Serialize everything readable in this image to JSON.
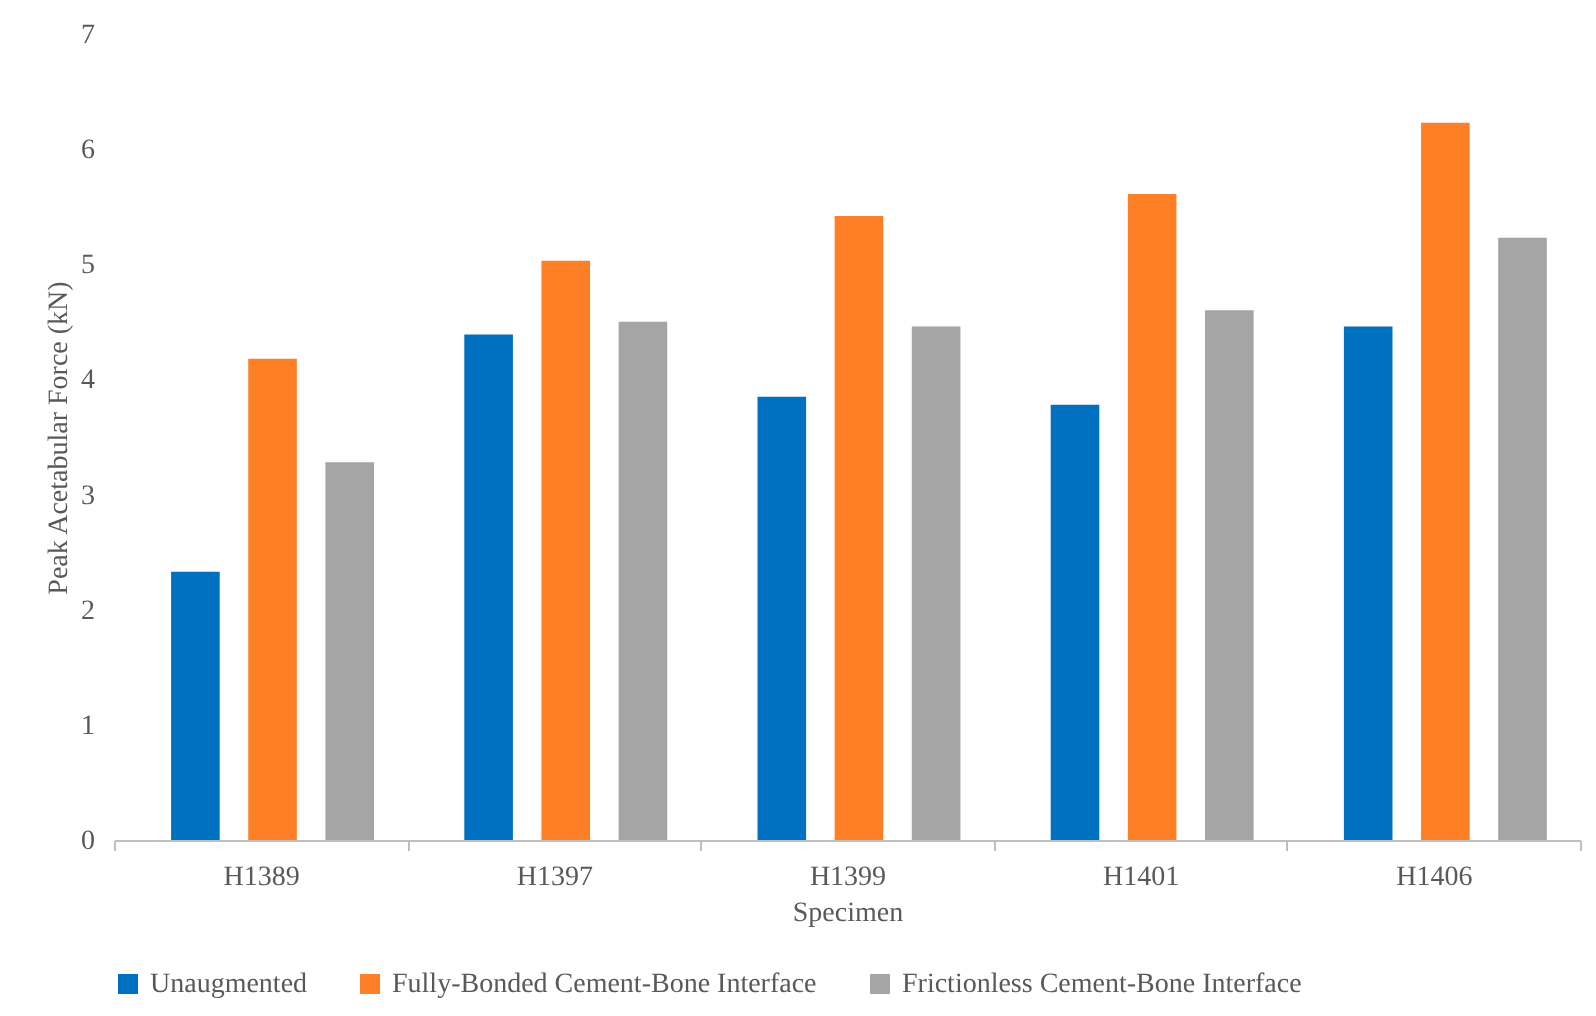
{
  "chart_data": {
    "type": "bar",
    "xlabel": "Specimen",
    "ylabel": "Peak Acetabular Force (kN)",
    "categories": [
      "H1389",
      "H1397",
      "H1399",
      "H1401",
      "H1406"
    ],
    "series": [
      {
        "name": "Unaugmented",
        "color": "#0070c0",
        "values": [
          2.33,
          4.39,
          3.85,
          3.78,
          4.46
        ]
      },
      {
        "name": "Fully-Bonded Cement-Bone Interface",
        "color": "#ff7f27",
        "values": [
          4.18,
          5.03,
          5.42,
          5.61,
          6.23
        ]
      },
      {
        "name": "Frictionless Cement-Bone Interface",
        "color": "#a5a5a5",
        "values": [
          3.28,
          4.5,
          4.46,
          4.6,
          5.23
        ]
      }
    ],
    "ylim": [
      0,
      7
    ],
    "yticks": [
      0,
      1,
      2,
      3,
      4,
      5,
      6,
      7
    ],
    "grid": false,
    "legend": "bottom"
  }
}
